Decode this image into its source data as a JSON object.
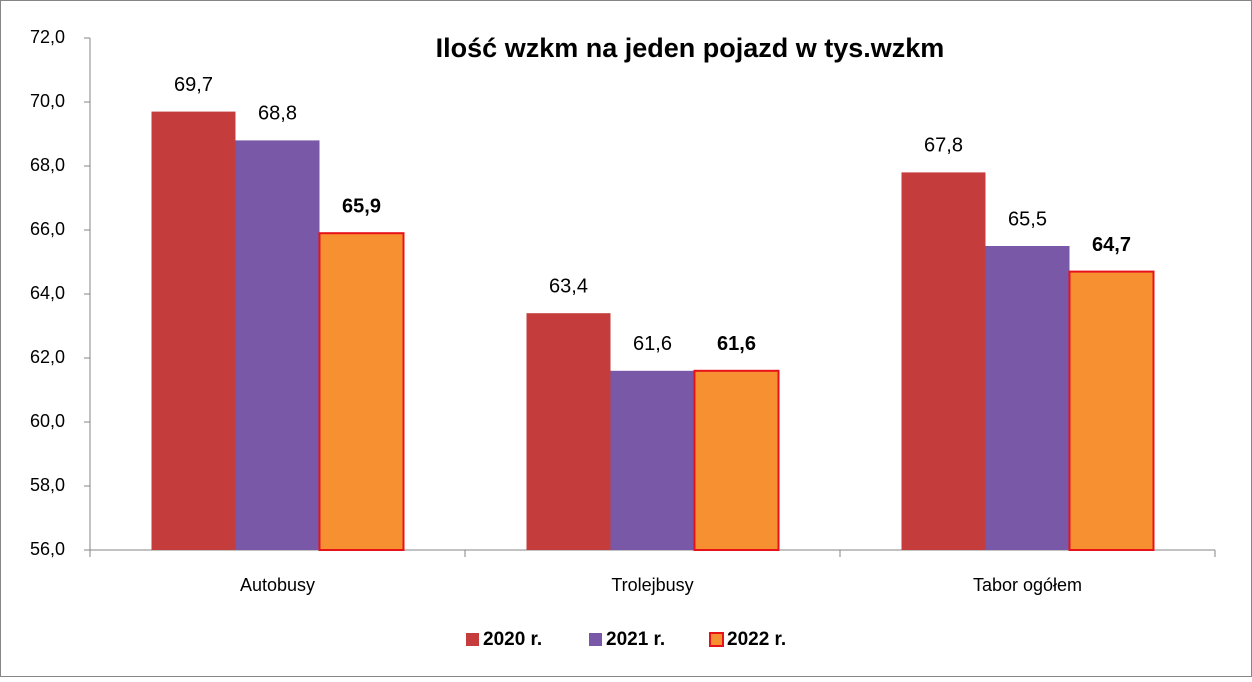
{
  "chart_data": {
    "type": "bar",
    "title": "Ilość wzkm na jeden pojazd w tys.wzkm",
    "categories": [
      "Autobusy",
      "Trolejbusy",
      "Tabor ogółem"
    ],
    "series": [
      {
        "name": "2020 r.",
        "color": "#c43c3c",
        "values": [
          69.7,
          63.4,
          67.8
        ],
        "value_labels": [
          "69,7",
          "63,4",
          "67,8"
        ]
      },
      {
        "name": "2021 r.",
        "color": "#7a58a8",
        "values": [
          68.8,
          61.6,
          65.5
        ],
        "value_labels": [
          "68,8",
          "61,6",
          "65,5"
        ]
      },
      {
        "name": "2022 r.",
        "color": "#f79030",
        "edgecolor": "#e8121b",
        "values": [
          65.9,
          61.6,
          64.7
        ],
        "value_labels": [
          "65,9",
          "61,6",
          "64,7"
        ]
      }
    ],
    "ylim": [
      56,
      72
    ],
    "yticks": [
      {
        "value": 56,
        "label": "56,0"
      },
      {
        "value": 58,
        "label": "58,0"
      },
      {
        "value": 60,
        "label": "60,0"
      },
      {
        "value": 62,
        "label": "62,0"
      },
      {
        "value": 64,
        "label": "64,0"
      },
      {
        "value": 66,
        "label": "66,0"
      },
      {
        "value": 68,
        "label": "68,0"
      },
      {
        "value": 70,
        "label": "70,0"
      },
      {
        "value": 72,
        "label": "72,0"
      }
    ],
    "legend": "bottom"
  }
}
